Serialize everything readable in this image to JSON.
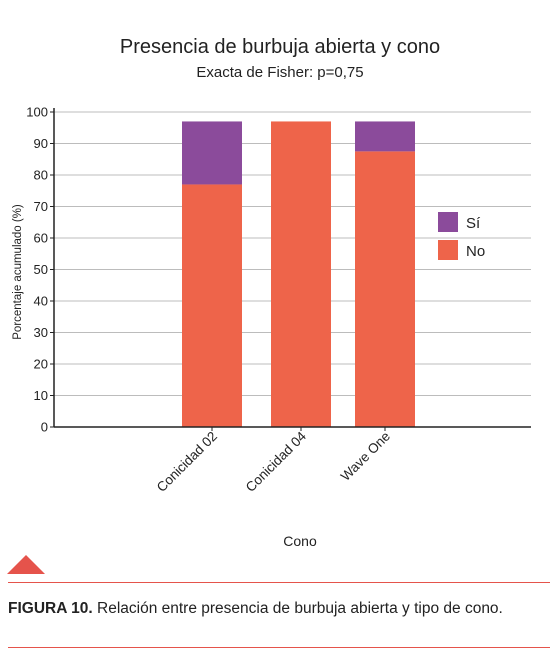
{
  "chart_data": {
    "type": "bar",
    "stacked": true,
    "title": "Presencia de burbuja abierta y cono",
    "subtitle": "Exacta de Fisher: p=0,75",
    "xlabel": "Cono",
    "ylabel": "Porcentaje acumulado (%)",
    "ylim": [
      0,
      100
    ],
    "yticks": [
      0,
      10,
      20,
      30,
      40,
      50,
      60,
      70,
      80,
      90,
      100
    ],
    "grid": true,
    "legend_position": "right",
    "categories": [
      "Conicidad 02",
      "Conicidad 04",
      "Wave One"
    ],
    "series": [
      {
        "name": "No",
        "values": [
          77,
          97,
          87.5
        ],
        "color": "#ee644a"
      },
      {
        "name": "Sí",
        "values": [
          20,
          0,
          9.5
        ],
        "color": "#8b4b9b"
      }
    ],
    "legend": [
      {
        "name": "Sí",
        "color": "#8b4b9b"
      },
      {
        "name": "No",
        "color": "#ee644a"
      }
    ]
  },
  "caption": {
    "label": "FIGURA 10.",
    "text": "Relación entre presencia de burbuja abierta y tipo de cono."
  },
  "colors": {
    "accent": "#e5534b"
  }
}
